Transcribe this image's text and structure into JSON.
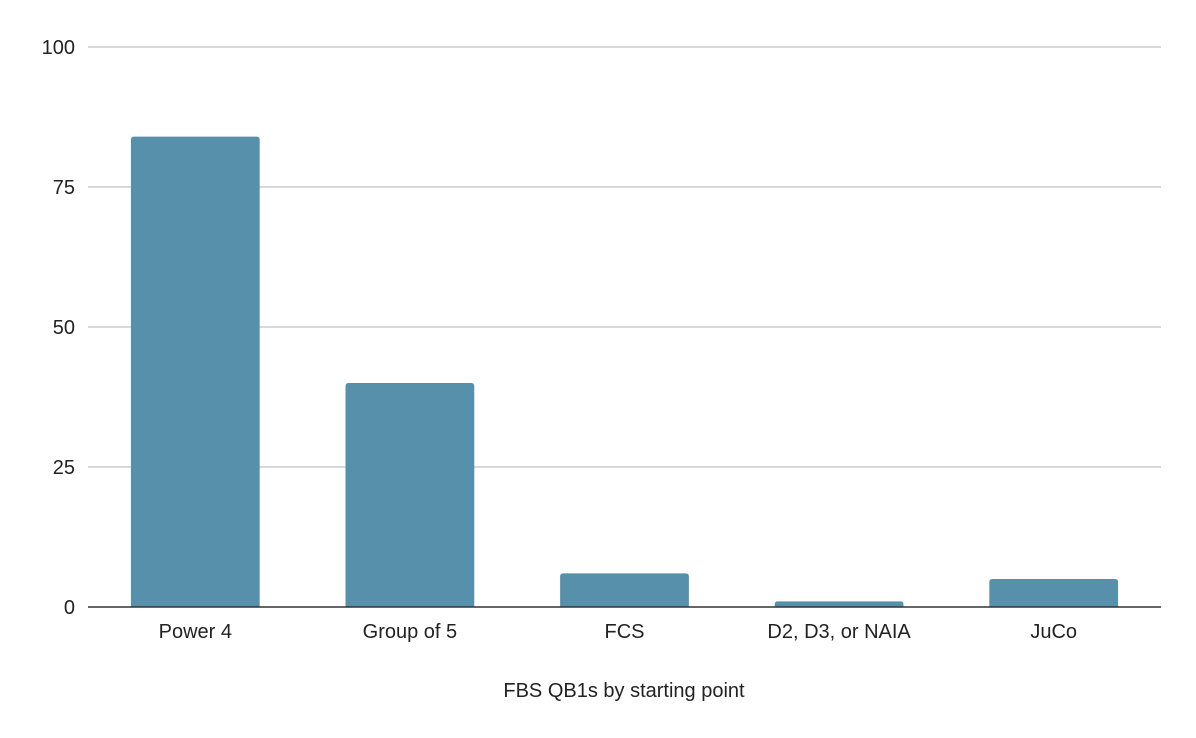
{
  "chart_data": {
    "type": "bar",
    "title": "",
    "xlabel": "FBS QB1s by starting point",
    "ylabel": "",
    "categories": [
      "Power 4",
      "Group of 5",
      "FCS",
      "D2, D3, or NAIA",
      "JuCo"
    ],
    "values": [
      84,
      40,
      6,
      1,
      5
    ],
    "ylim": [
      0,
      100
    ],
    "yticks": [
      0,
      25,
      50,
      75,
      100
    ],
    "ytick_labels": [
      "0",
      "25",
      "50",
      "75",
      "100"
    ],
    "grid": true,
    "legend": "none"
  },
  "colors": {
    "bar": "#5790ab",
    "grid": "#cccccc",
    "axis": "#333333",
    "text": "#222222",
    "background": "#ffffff"
  }
}
